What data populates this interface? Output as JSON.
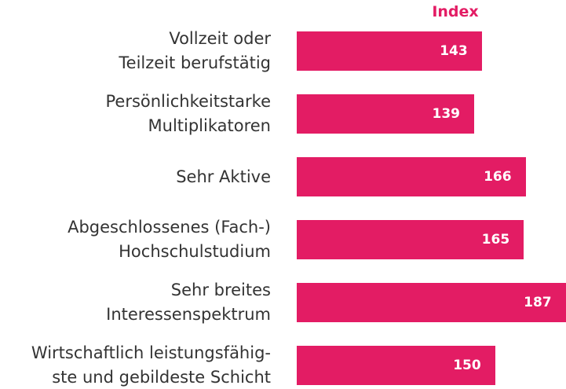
{
  "chart_data": {
    "type": "bar",
    "orientation": "horizontal",
    "column_header": "Index",
    "categories": [
      "Vollzeit oder\nTeilzeit berufstätig",
      "Persönlichkeitstarke\nMultiplikatoren",
      "Sehr Aktive",
      "Abgeschlossenes (Fach-)\nHochschulstudium",
      "Sehr breites\nInteressenspektrum",
      "Wirtschaftlich leistungsfähig-\nste und gebildeste Schicht"
    ],
    "values": [
      143,
      139,
      166,
      165,
      187,
      150
    ],
    "color": "#e31c64"
  }
}
